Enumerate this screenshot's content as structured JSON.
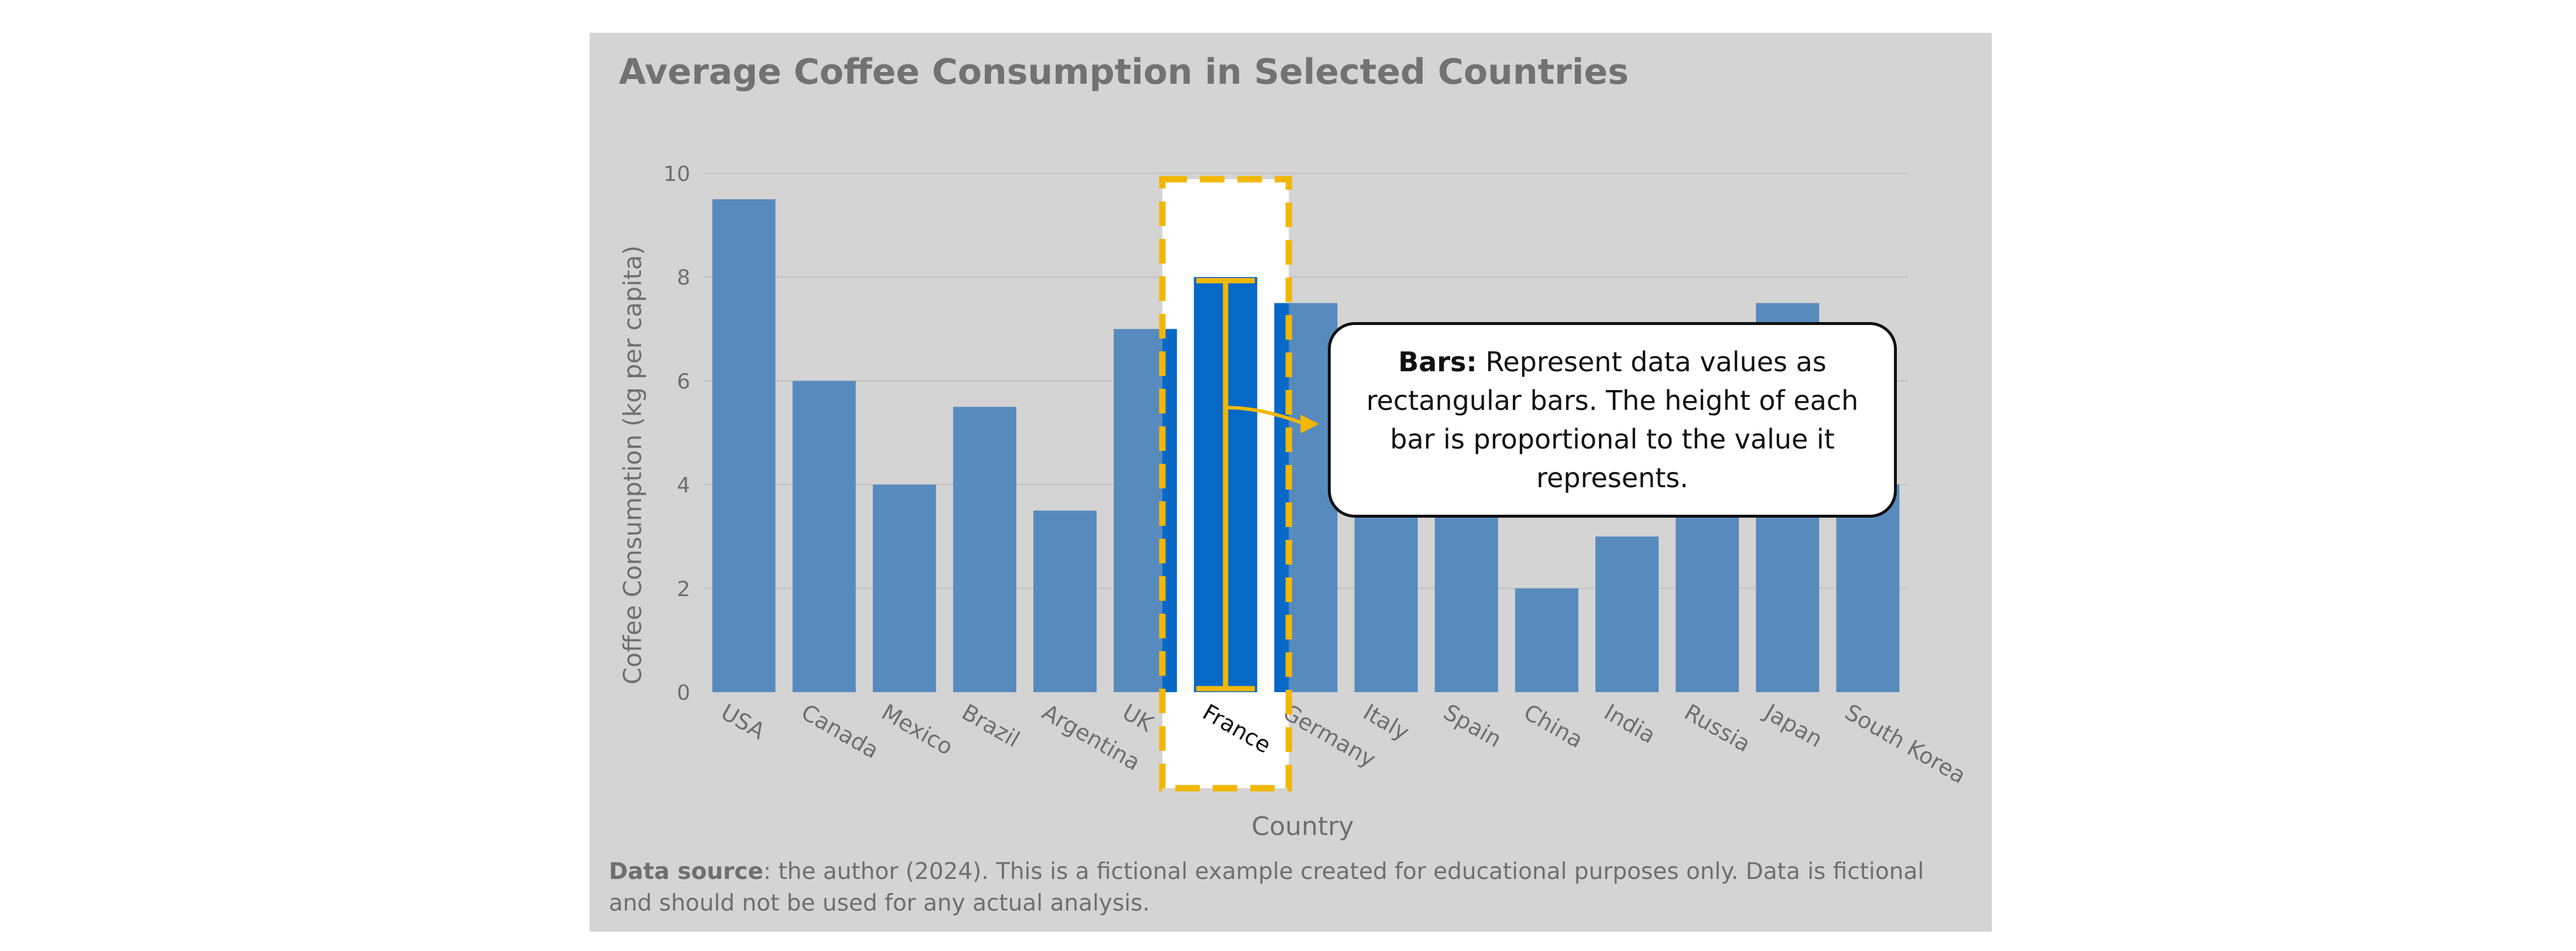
{
  "chart_data": {
    "type": "bar",
    "title": "Average Coffee Consumption in Selected Countries",
    "xlabel": "Country",
    "ylabel": "Coffee Consumption (kg per capita)",
    "categories": [
      "USA",
      "Canada",
      "Mexico",
      "Brazil",
      "Argentina",
      "UK",
      "France",
      "Germany",
      "Italy",
      "Spain",
      "China",
      "India",
      "Russia",
      "Japan",
      "South Korea"
    ],
    "values": [
      9.5,
      6,
      4,
      5.5,
      3.5,
      7,
      8,
      7.5,
      4,
      4,
      2,
      3,
      4,
      7.5,
      4
    ],
    "ylim": [
      0,
      10
    ],
    "yticks": [
      0,
      2,
      4,
      6,
      8,
      10
    ],
    "grid": true,
    "highlighted_category": "France",
    "colors": {
      "bar": "#588bbd",
      "highlight_bar": "#0669c8",
      "highlight_outline": "#f2b705",
      "background": "#d4d4d4"
    }
  },
  "callout": {
    "term": "Bars:",
    "text": "Represent data values as rectangular bars. The height of each bar is proportional to the value it represents."
  },
  "footer": {
    "source_label": "Data source",
    "source_text": ": the author (2024). This is a fictional example created for educational purposes only. Data is fictional and should not be used for any actual analysis."
  }
}
